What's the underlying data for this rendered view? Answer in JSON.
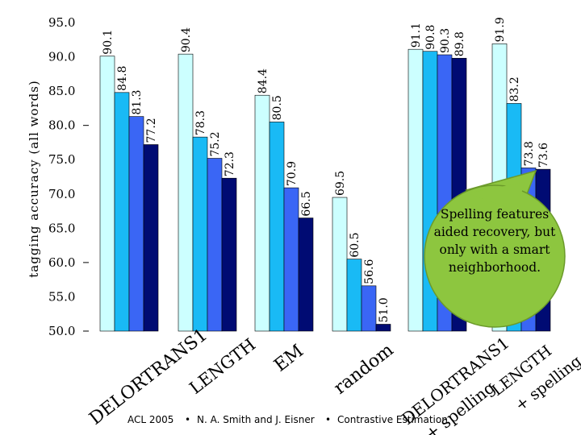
{
  "chart_data": {
    "type": "bar",
    "ylabel": "tagging accuracy (all words)",
    "ylim": [
      50,
      95
    ],
    "yticks": [
      "95.0",
      "90.0",
      "85.0",
      "80.0",
      "75.0",
      "70.0",
      "65.0",
      "60.0",
      "55.0",
      "50.0"
    ],
    "grid": false,
    "colors": [
      "#ccffff",
      "#19baf5",
      "#3a66f5",
      "#000b73"
    ],
    "groups": [
      {
        "label": "DELORTRANS1",
        "values": [
          90.1,
          84.8,
          81.3,
          77.2
        ],
        "value_labels": [
          "90.1",
          "84.8",
          "81.3",
          "77.2"
        ]
      },
      {
        "label": "LENGTH",
        "values": [
          90.4,
          78.3,
          75.2,
          72.3
        ],
        "value_labels": [
          "90.4",
          "78.3",
          "75.2",
          "72.3"
        ]
      },
      {
        "label": "EM",
        "values": [
          84.4,
          80.5,
          70.9,
          66.5
        ],
        "value_labels": [
          "84.4",
          "80.5",
          "70.9",
          "66.5"
        ]
      },
      {
        "label": "random",
        "values": [
          69.5,
          60.5,
          56.6,
          51.0
        ],
        "value_labels": [
          "69.5",
          "60.5",
          "56.6",
          "51.0"
        ]
      },
      {
        "label": "DELORTRANS1 + spelling",
        "values": [
          91.1,
          90.8,
          90.3,
          89.8
        ],
        "value_labels": [
          "91.1",
          "90.8",
          "90.3",
          "89.8"
        ]
      },
      {
        "label": "LENGTH + spelling",
        "values": [
          91.9,
          83.2,
          73.8,
          73.6
        ],
        "value_labels": [
          "91.9",
          "83.2",
          "73.8",
          "73.6"
        ]
      }
    ],
    "annotation": "Spelling features aided recovery, but only with a smart neighborhood."
  },
  "footer": {
    "venue": "ACL 2005",
    "authors": "N. A. Smith and J. Eisner",
    "title": "Contrastive Estimation",
    "separator": "•"
  }
}
